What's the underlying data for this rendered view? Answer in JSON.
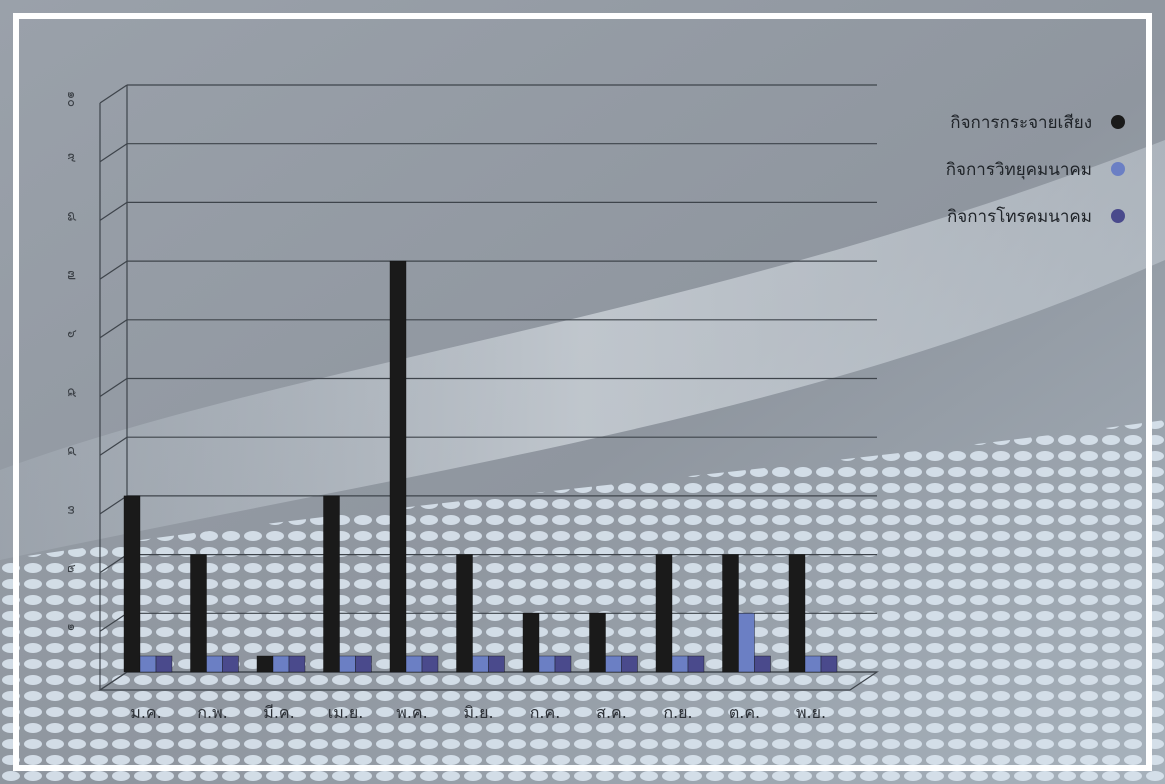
{
  "chart_data": {
    "type": "bar",
    "title": "",
    "xlabel": "",
    "ylabel": "",
    "ylim": [
      0,
      10
    ],
    "yticks": [
      "๑",
      "๒",
      "๓",
      "๔",
      "๕",
      "๖",
      "๗",
      "๘",
      "๙",
      "๑๐"
    ],
    "categories": [
      "ม.ค.",
      "ก.พ.",
      "มี.ค.",
      "เม.ย.",
      "พ.ค.",
      "มิ.ย.",
      "ก.ค.",
      "ส.ค.",
      "ก.ย.",
      "ต.ค.",
      "พ.ย."
    ],
    "series": [
      {
        "name": "กิจการกระจายเสียง",
        "color": "#1a1a1a",
        "values": [
          3,
          2,
          0,
          3,
          7,
          2,
          1,
          1,
          2,
          2,
          2
        ]
      },
      {
        "name": "กิจการวิทยุคมนาคม",
        "color": "#6b7fc4",
        "values": [
          0,
          0,
          0,
          0,
          0,
          0,
          0,
          0,
          0,
          1,
          0
        ]
      },
      {
        "name": "กิจการโทรคมนาคม",
        "color": "#4a4a8c",
        "values": [
          0,
          0,
          0,
          0,
          0,
          0,
          0,
          0,
          0,
          0,
          0
        ]
      }
    ],
    "grid": true,
    "legend_position": "top-right"
  }
}
